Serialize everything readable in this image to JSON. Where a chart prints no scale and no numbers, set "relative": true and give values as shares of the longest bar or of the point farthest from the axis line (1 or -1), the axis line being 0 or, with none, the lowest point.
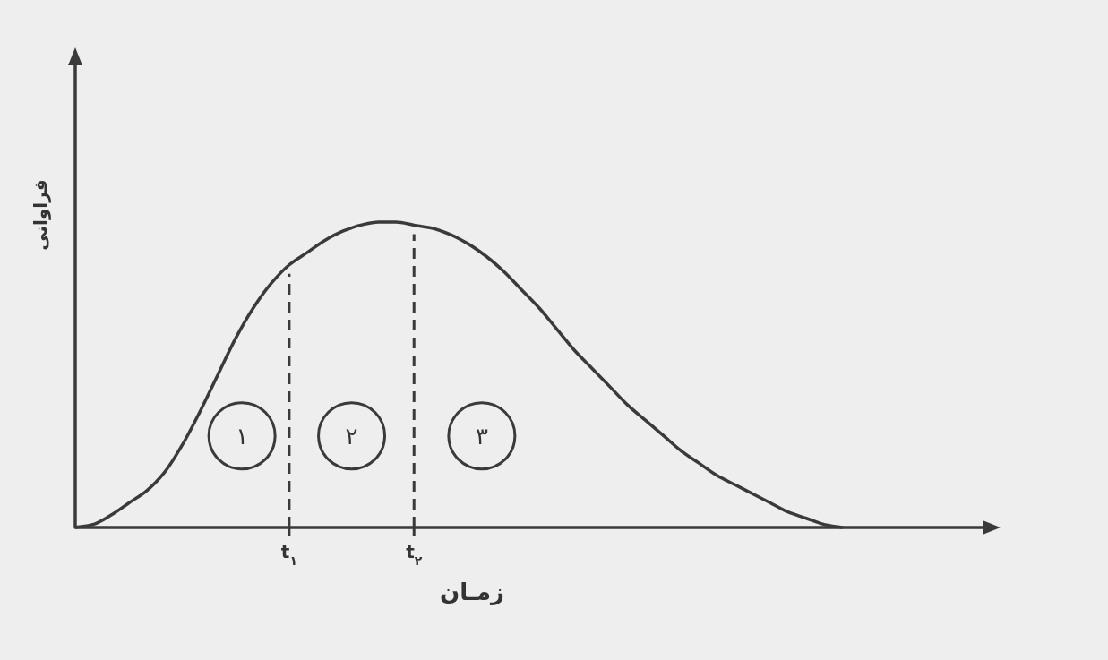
{
  "chart_data": {
    "type": "line",
    "relative": true,
    "xlabel": "زمـان",
    "ylabel": "فراوانی",
    "color": "#3a3a3a",
    "categories": [
      null,
      null,
      null,
      null,
      null,
      null,
      null,
      null,
      null,
      null,
      null,
      null,
      "t$_{۱}$",
      null,
      null,
      null,
      null,
      null,
      null,
      "t$_{۲}$",
      null,
      null,
      null,
      null,
      null,
      null,
      null,
      null,
      null,
      null,
      null,
      null,
      null,
      null,
      null,
      null,
      null,
      null,
      null,
      null,
      null,
      null,
      null,
      null
    ],
    "values": [
      0,
      0.01,
      0.04,
      0.08,
      0.12,
      0.18,
      0.27,
      0.38,
      0.5,
      0.62,
      0.72,
      0.8,
      0.86,
      0.9,
      0.94,
      0.97,
      0.99,
      1,
      1,
      0.99,
      0.98,
      0.96,
      0.93,
      0.89,
      0.84,
      0.78,
      0.72,
      0.65,
      0.58,
      0.52,
      0.46,
      0.4,
      0.35,
      0.3,
      0.25,
      0.21,
      0.17,
      0.14,
      0.11,
      0.08,
      0.05,
      0.03,
      0.01,
      0
    ],
    "ref_lines": [
      {
        "axis": "x",
        "value": "t$_{۱}$",
        "line_style": "dashed"
      },
      {
        "axis": "x",
        "value": "t$_{۲}$",
        "line_style": "dashed"
      }
    ],
    "annotations": [
      "۱",
      "۲",
      "۳"
    ]
  }
}
